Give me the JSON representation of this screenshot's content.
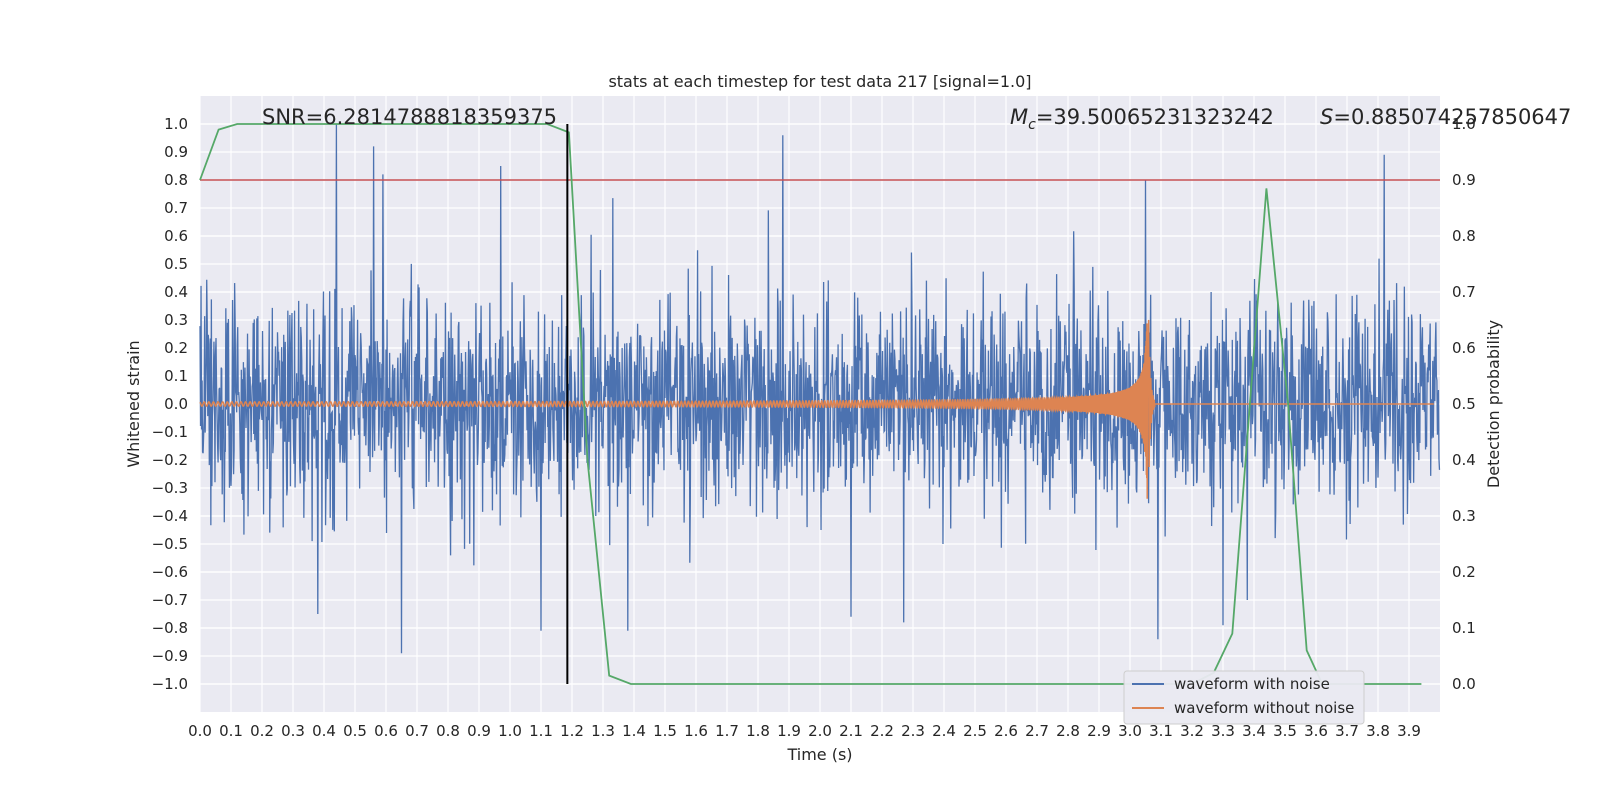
{
  "chart_data": {
    "type": "line",
    "title": "stats at each timestep for test data 217 [signal=1.0]",
    "xlabel": "Time (s)",
    "ylabel": "Whitened strain",
    "y2label": "Detection probability",
    "xlim": [
      0.0,
      4.0
    ],
    "ylim": [
      -1.1,
      1.1
    ],
    "y2lim": [
      -0.05,
      1.05
    ],
    "grid": true,
    "legend_position": "lower-right",
    "x_ticks": [
      "0.0",
      "0.1",
      "0.2",
      "0.3",
      "0.4",
      "0.5",
      "0.6",
      "0.7",
      "0.8",
      "0.9",
      "1.0",
      "1.1",
      "1.2",
      "1.3",
      "1.4",
      "1.5",
      "1.6",
      "1.7",
      "1.8",
      "1.9",
      "2.0",
      "2.1",
      "2.2",
      "2.3",
      "2.4",
      "2.5",
      "2.6",
      "2.7",
      "2.8",
      "2.9",
      "3.0",
      "3.1",
      "3.2",
      "3.3",
      "3.4",
      "3.5",
      "3.6",
      "3.7",
      "3.8",
      "3.9"
    ],
    "y_ticks": [
      "1.0",
      "0.9",
      "0.8",
      "0.7",
      "0.6",
      "0.5",
      "0.4",
      "0.3",
      "0.2",
      "0.1",
      "0.0",
      "−0.1",
      "−0.2",
      "−0.3",
      "−0.4",
      "−0.5",
      "−0.6",
      "−0.7",
      "−0.8",
      "−0.9",
      "−1.0"
    ],
    "y2_ticks": [
      "1.0",
      "0.9",
      "0.8",
      "0.7",
      "0.6",
      "0.5",
      "0.4",
      "0.3",
      "0.2",
      "0.1",
      "0.0"
    ],
    "annotations": {
      "snr": "SNR=6.2814788818359375",
      "mc_symbol": "M",
      "mc_sub": "c",
      "mc_value": "=39.50065231323242",
      "s_symbol": "S",
      "s_value": "=0.885074257850647"
    },
    "colors": {
      "noise": "#4c72b0",
      "clean": "#dd8452",
      "prob": "#55a868",
      "threshold": "#c44e52",
      "marker": "#000000",
      "background": "#eaeaf2",
      "grid": "#ffffff"
    },
    "threshold_prob": 0.9,
    "detection_marker_time": 1.185,
    "series": [
      {
        "name": "waveform with noise",
        "style": "line",
        "duration": 4.0,
        "noise_std": 0.19,
        "spikes": [
          {
            "t": 0.44,
            "v": 1.0
          },
          {
            "t": 0.56,
            "v": 0.92
          },
          {
            "t": 0.59,
            "v": 0.82
          },
          {
            "t": 0.97,
            "v": 0.85
          },
          {
            "t": 1.88,
            "v": 0.96
          },
          {
            "t": 3.05,
            "v": 0.8
          },
          {
            "t": 3.82,
            "v": 0.89
          },
          {
            "t": 0.65,
            "v": -0.89
          },
          {
            "t": 0.38,
            "v": -0.75
          },
          {
            "t": 1.1,
            "v": -0.81
          },
          {
            "t": 1.38,
            "v": -0.81
          },
          {
            "t": 2.1,
            "v": -0.76
          },
          {
            "t": 2.27,
            "v": -0.78
          },
          {
            "t": 3.09,
            "v": -0.84
          },
          {
            "t": 3.3,
            "v": -0.79
          }
        ]
      },
      {
        "name": "waveform without noise",
        "style": "chirp",
        "merger_time": 3.06,
        "peak_amplitude": 0.38,
        "ringdown_end": 3.08
      },
      {
        "name": "",
        "style": "probability",
        "x": [
          0.0,
          0.06,
          0.12,
          0.2,
          0.4,
          0.6,
          0.8,
          1.0,
          1.12,
          1.19,
          1.25,
          1.32,
          1.39,
          1.6,
          2.0,
          2.5,
          3.0,
          3.2,
          3.27,
          3.33,
          3.44,
          3.51,
          3.57,
          3.62,
          3.7,
          3.8,
          3.94
        ],
        "y": [
          0.9,
          0.99,
          1.0,
          1.0,
          1.0,
          1.0,
          1.0,
          1.0,
          1.0,
          0.985,
          0.4,
          0.015,
          0.0,
          0.0,
          0.0,
          0.0,
          0.0,
          0.0,
          0.02,
          0.09,
          0.885,
          0.5,
          0.06,
          0.0,
          0.0,
          0.0,
          0.0
        ]
      }
    ],
    "legend": [
      "waveform with noise",
      "waveform without noise"
    ]
  }
}
